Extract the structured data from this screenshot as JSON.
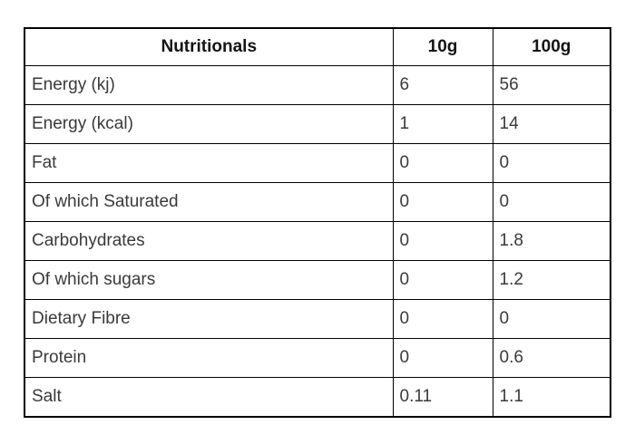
{
  "accent_colors": {
    "border": "#000000",
    "header_text": "#141414",
    "body_text": "#3a3a3a",
    "background": "#ffffff"
  },
  "table": {
    "headers": [
      "Nutritionals",
      "10g",
      "100g"
    ],
    "rows": [
      {
        "label": "Energy (kj)",
        "per_10g": "6",
        "per_100g": "56"
      },
      {
        "label": "Energy (kcal)",
        "per_10g": "1",
        "per_100g": "14"
      },
      {
        "label": "Fat",
        "per_10g": "0",
        "per_100g": "0"
      },
      {
        "label": "Of which Saturated",
        "per_10g": "0",
        "per_100g": "0"
      },
      {
        "label": "Carbohydrates",
        "per_10g": "0",
        "per_100g": "1.8"
      },
      {
        "label": "Of which sugars",
        "per_10g": "0",
        "per_100g": "1.2"
      },
      {
        "label": "Dietary Fibre",
        "per_10g": "0",
        "per_100g": "0"
      },
      {
        "label": "Protein",
        "per_10g": "0",
        "per_100g": "0.6"
      },
      {
        "label": "Salt",
        "per_10g": "0.11",
        "per_100g": "1.1"
      }
    ]
  }
}
